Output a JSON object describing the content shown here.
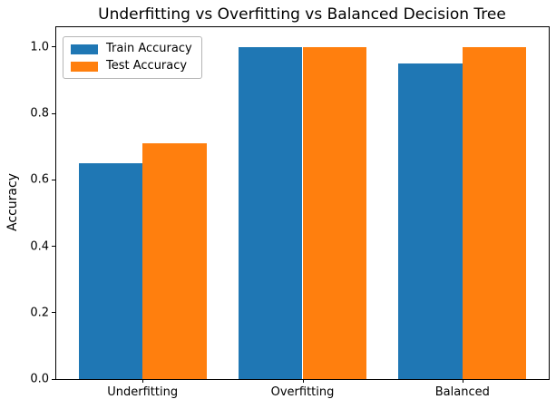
{
  "chart_data": {
    "type": "bar",
    "title": "Underfitting vs Overfitting vs Balanced Decision Tree",
    "xlabel": "",
    "ylabel": "Accuracy",
    "categories": [
      "Underfitting",
      "Overfitting",
      "Balanced"
    ],
    "series": [
      {
        "name": "Train Accuracy",
        "color": "#1f77b4",
        "values": [
          0.65,
          1.0,
          0.95
        ]
      },
      {
        "name": "Test Accuracy",
        "color": "#ff7f0e",
        "values": [
          0.71,
          1.0,
          1.0
        ]
      }
    ],
    "yticks": [
      0.0,
      0.2,
      0.4,
      0.6,
      0.8,
      1.0
    ],
    "ytick_labels": [
      "0.0",
      "0.2",
      "0.4",
      "0.6",
      "0.8",
      "1.0"
    ],
    "ylim": [
      0,
      1.06
    ],
    "xlim": [
      -0.54,
      2.54
    ],
    "bar_width": 0.4,
    "grid": false,
    "legend_position": "upper left"
  }
}
